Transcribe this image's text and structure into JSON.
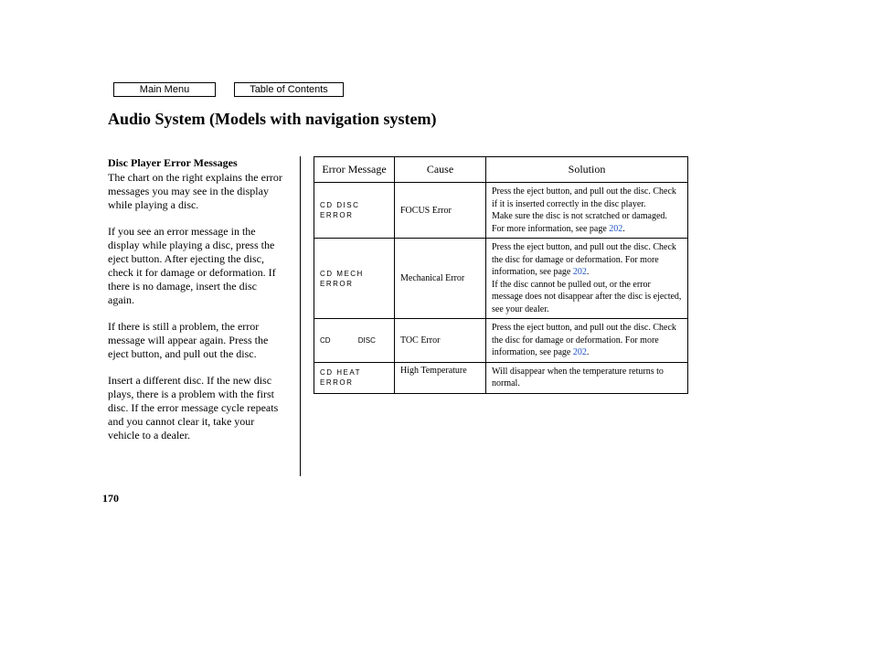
{
  "nav": {
    "main_menu": "Main Menu",
    "toc": "Table of Contents"
  },
  "title": "Audio System (Models with navigation system)",
  "left": {
    "subhead": "Disc Player Error Messages",
    "p1": "The chart on the right explains the error messages you may see in the display while playing a disc.",
    "p2": "If you see an error message in the display while playing a disc, press the eject button. After ejecting the disc, check it for damage or deformation. If there is no damage, insert the disc again.",
    "p3": "If there is still a problem, the error message will appear again. Press the eject button, and pull out the disc.",
    "p4": "Insert a different disc. If the new disc plays, there is a problem with the first disc. If the error message cycle repeats and you cannot clear it, take your vehicle to a dealer."
  },
  "table": {
    "headers": {
      "msg": "Error Message",
      "cause": "Cause",
      "solution": "Solution"
    },
    "link_color": "#1a4fc4",
    "page_ref": "202",
    "rows": [
      {
        "code": "CD DISC ERROR",
        "cause": "FOCUS Error",
        "sol_a": "Press the eject button, and pull out the disc. Check if it is inserted correctly in the disc player.",
        "sol_b": "Make sure the disc is not scratched or damaged.",
        "sol_c": "For more information, see page "
      },
      {
        "code": "CD MECH ERROR",
        "cause": "Mechanical Error",
        "sol_a": "Press the eject button, and pull out the disc. Check the disc for damage or deformation. For more information, see page ",
        "sol_b": "If the disc cannot be pulled out, or the error message does not disappear after the disc is ejected, see your dealer."
      },
      {
        "code": "CD DISC",
        "code_spread": true,
        "cause": "TOC Error",
        "sol_a": "Press the eject button, and pull out the disc. Check the disc for damage or deformation. For more information, see page "
      },
      {
        "code": "CD HEAT ERROR",
        "cause": "High Temperature",
        "sol_plain": "Will disappear when the temperature returns to normal."
      }
    ]
  },
  "page_number": "170"
}
